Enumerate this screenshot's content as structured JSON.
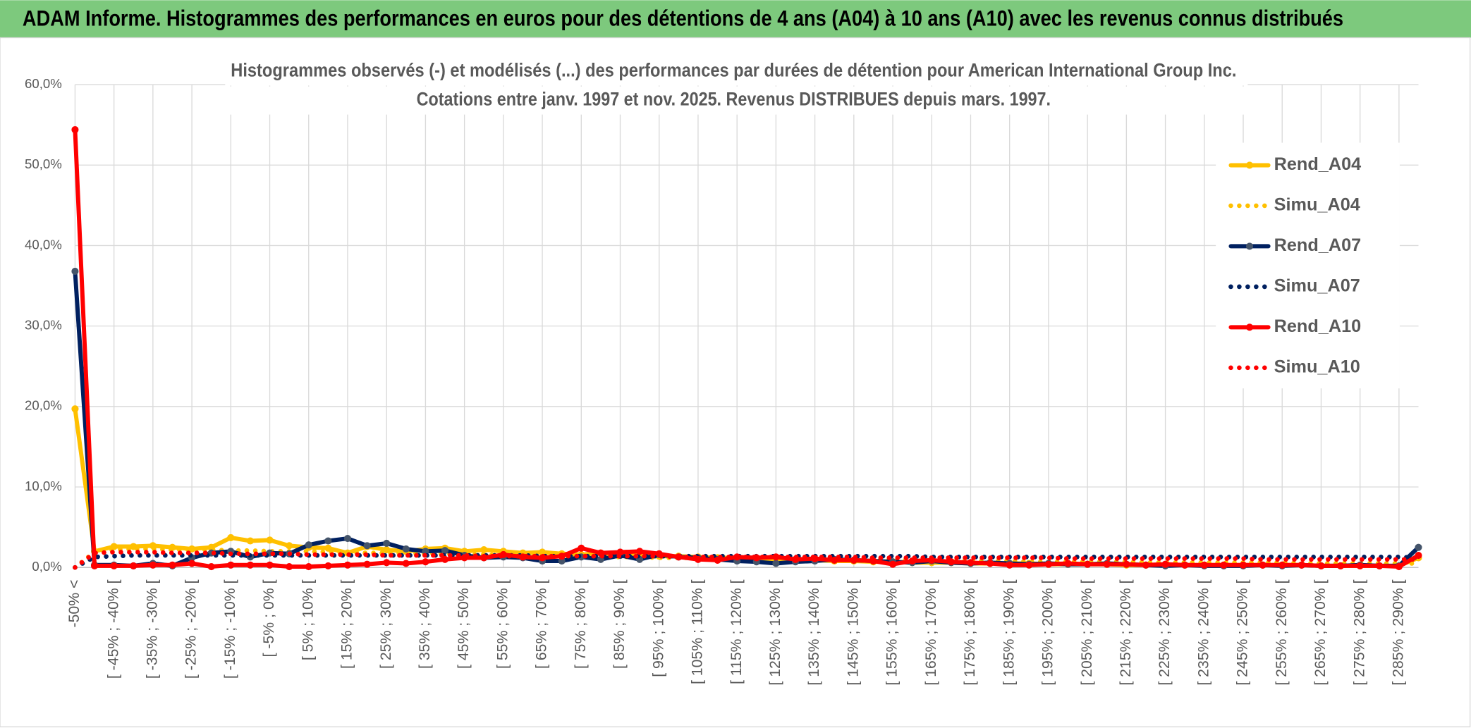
{
  "chart_data": {
    "type": "line",
    "title": "ADAM Informe. Histogrammes des performances en euros pour des détentions de 4 ans (A04) à 10 ans (A10) avec les revenus connus distribués",
    "subtitle": [
      "Histogrammes observés (-) et modélisés (...) des performances par durées de détention pour American International Group Inc.",
      "Cotations entre janv. 1997 et nov. 2025. Revenus DISTRIBUES depuis mars. 1997."
    ],
    "categories": [
      "-50% <",
      null,
      "[ -45% ; -40% [",
      null,
      "[ -35% ; -30% [",
      null,
      "[ -25% ; -20% [",
      null,
      "[ -15% ; -10% [",
      null,
      "[ -5% ; 0% [",
      null,
      "[ 5% ; 10% [",
      null,
      "[ 15% ; 20% [",
      null,
      "[ 25% ; 30% [",
      null,
      "[ 35% ; 40% [",
      null,
      "[ 45% ; 50% [",
      null,
      "[ 55% ; 60% [",
      null,
      "[ 65% ; 70% [",
      null,
      "[ 75% ; 80% [",
      null,
      "[ 85% ; 90% [",
      null,
      "[ 95% ; 100% [",
      null,
      "[ 105% ; 110% [",
      null,
      "[ 115% ; 120% [",
      null,
      "[ 125% ; 130% [",
      null,
      "[ 135% ; 140% [",
      null,
      "[ 145% ; 150% [",
      null,
      "[ 155% ; 160% [",
      null,
      "[ 165% ; 170% [",
      null,
      "[ 175% ; 180% [",
      null,
      "[ 185% ; 190% [",
      null,
      "[ 195% ; 200% [",
      null,
      "[ 205% ; 210% [",
      null,
      "[ 215% ; 220% [",
      null,
      "[ 225% ; 230% [",
      null,
      "[ 235% ; 240% [",
      null,
      "[ 245% ; 250% [",
      null,
      "[ 255% ; 260% [",
      null,
      "[ 265% ; 270% [",
      null,
      "[ 275% ; 280% [",
      null,
      "[ 285% ; 290% [",
      null
    ],
    "series": [
      {
        "name": "Rend_A04",
        "color": "#ffc000",
        "style": "solid",
        "values": [
          19.7,
          2.0,
          2.6,
          2.6,
          2.7,
          2.5,
          2.3,
          2.5,
          3.7,
          3.3,
          3.4,
          2.7,
          2.5,
          2.4,
          1.8,
          2.6,
          2.2,
          2.0,
          2.3,
          2.4,
          2.0,
          2.2,
          2.0,
          1.8,
          1.9,
          1.7,
          1.6,
          1.8,
          1.5,
          1.6,
          1.4,
          1.4,
          1.3,
          1.2,
          1.2,
          1.1,
          1.0,
          0.9,
          0.9,
          0.8,
          0.8,
          0.7,
          0.7,
          0.6,
          0.6,
          0.6,
          0.5,
          0.5,
          0.5,
          0.5,
          0.4,
          0.4,
          0.4,
          0.4,
          0.3,
          0.3,
          0.3,
          0.3,
          0.3,
          0.3,
          0.3,
          0.3,
          0.3,
          0.3,
          0.2,
          0.2,
          0.2,
          0.2,
          0.2,
          1.2
        ]
      },
      {
        "name": "Simu_A04",
        "color": "#ffc000",
        "style": "dotted",
        "values": [
          0.0,
          1.9,
          2.2,
          2.3,
          2.3,
          2.2,
          2.2,
          2.2,
          2.1,
          2.1,
          2.0,
          2.0,
          2.0,
          1.9,
          1.9,
          1.8,
          1.8,
          1.8,
          1.7,
          1.7,
          1.6,
          1.6,
          1.5,
          1.5,
          1.4,
          1.4,
          1.4,
          1.3,
          1.3,
          1.3,
          1.2,
          1.2,
          1.2,
          1.1,
          1.1,
          1.1,
          1.0,
          1.0,
          1.0,
          1.0,
          0.9,
          0.9,
          0.9,
          0.9,
          0.8,
          0.8,
          0.8,
          0.8,
          0.8,
          0.7,
          0.7,
          0.7,
          0.7,
          0.7,
          0.7,
          0.6,
          0.6,
          0.6,
          0.6,
          0.6,
          0.6,
          0.6,
          0.6,
          0.5,
          0.5,
          0.5,
          0.5,
          0.5,
          0.5,
          0.5
        ]
      },
      {
        "name": "Rend_A07",
        "color": "#002060",
        "style": "solid",
        "values": [
          36.8,
          0.3,
          0.3,
          0.2,
          0.5,
          0.2,
          1.2,
          1.8,
          2.0,
          1.3,
          1.8,
          1.7,
          2.8,
          3.3,
          3.6,
          2.7,
          3.0,
          2.3,
          2.0,
          2.1,
          1.5,
          1.2,
          1.3,
          1.2,
          0.8,
          0.8,
          1.3,
          1.0,
          1.5,
          1.0,
          1.6,
          1.3,
          1.2,
          1.0,
          0.8,
          0.7,
          0.5,
          0.7,
          0.8,
          1.0,
          0.9,
          0.8,
          0.7,
          0.6,
          0.8,
          0.6,
          0.5,
          0.6,
          0.5,
          0.4,
          0.5,
          0.4,
          0.4,
          0.5,
          0.4,
          0.3,
          0.2,
          0.3,
          0.2,
          0.2,
          0.2,
          0.3,
          0.2,
          0.3,
          0.2,
          0.2,
          0.3,
          0.2,
          0.2,
          2.5
        ]
      },
      {
        "name": "Simu_A07",
        "color": "#002060",
        "style": "dotted",
        "values": [
          0.0,
          1.3,
          1.4,
          1.5,
          1.5,
          1.5,
          1.5,
          1.5,
          1.5,
          1.5,
          1.5,
          1.5,
          1.5,
          1.5,
          1.5,
          1.5,
          1.5,
          1.5,
          1.5,
          1.5,
          1.5,
          1.5,
          1.5,
          1.5,
          1.4,
          1.4,
          1.4,
          1.4,
          1.4,
          1.4,
          1.4,
          1.4,
          1.4,
          1.4,
          1.4,
          1.4,
          1.4,
          1.4,
          1.4,
          1.4,
          1.4,
          1.4,
          1.4,
          1.4,
          1.3,
          1.3,
          1.3,
          1.3,
          1.3,
          1.3,
          1.3,
          1.3,
          1.3,
          1.3,
          1.3,
          1.3,
          1.3,
          1.3,
          1.3,
          1.3,
          1.3,
          1.3,
          1.3,
          1.3,
          1.3,
          1.3,
          1.3,
          1.3,
          1.3,
          1.2
        ]
      },
      {
        "name": "Rend_A10",
        "color": "#ff0000",
        "style": "solid",
        "values": [
          54.4,
          0.2,
          0.2,
          0.2,
          0.3,
          0.3,
          0.5,
          0.1,
          0.3,
          0.3,
          0.3,
          0.1,
          0.1,
          0.2,
          0.3,
          0.4,
          0.6,
          0.5,
          0.7,
          1.0,
          1.2,
          1.2,
          1.6,
          1.3,
          1.2,
          1.4,
          2.4,
          1.8,
          1.9,
          2.0,
          1.7,
          1.3,
          1.0,
          0.9,
          1.3,
          1.2,
          1.3,
          1.0,
          1.1,
          0.9,
          0.9,
          0.8,
          0.4,
          0.8,
          0.9,
          0.7,
          0.6,
          0.5,
          0.3,
          0.3,
          0.4,
          0.5,
          0.4,
          0.4,
          0.4,
          0.3,
          0.4,
          0.3,
          0.3,
          0.3,
          0.3,
          0.3,
          0.3,
          0.3,
          0.2,
          0.2,
          0.2,
          0.2,
          0.1,
          1.5
        ]
      },
      {
        "name": "Simu_A10",
        "color": "#ff0000",
        "style": "dotted",
        "values": [
          0.0,
          1.8,
          1.9,
          1.9,
          1.9,
          1.8,
          1.8,
          1.8,
          1.7,
          1.7,
          1.7,
          1.7,
          1.6,
          1.6,
          1.6,
          1.6,
          1.5,
          1.5,
          1.5,
          1.5,
          1.5,
          1.4,
          1.4,
          1.4,
          1.4,
          1.4,
          1.4,
          1.4,
          1.4,
          1.4,
          1.4,
          1.3,
          1.3,
          1.3,
          1.3,
          1.3,
          1.3,
          1.3,
          1.3,
          1.3,
          1.3,
          1.2,
          1.2,
          1.2,
          1.2,
          1.2,
          1.2,
          1.2,
          1.2,
          1.2,
          1.2,
          1.1,
          1.1,
          1.1,
          1.1,
          1.1,
          1.1,
          1.1,
          1.1,
          1.1,
          1.1,
          1.0,
          1.0,
          1.0,
          1.0,
          1.0,
          1.0,
          1.0,
          1.0,
          1.0
        ]
      }
    ],
    "ylim": [
      0,
      60
    ],
    "yticks": [
      {
        "value": 0,
        "label": "0,0%"
      },
      {
        "value": 10,
        "label": "10,0%"
      },
      {
        "value": 20,
        "label": "20,0%"
      },
      {
        "value": 30,
        "label": "30,0%"
      },
      {
        "value": 40,
        "label": "40,0%"
      },
      {
        "value": 50,
        "label": "50,0%"
      },
      {
        "value": 60,
        "label": "60,0%"
      }
    ],
    "grid": true,
    "legend": "right"
  }
}
